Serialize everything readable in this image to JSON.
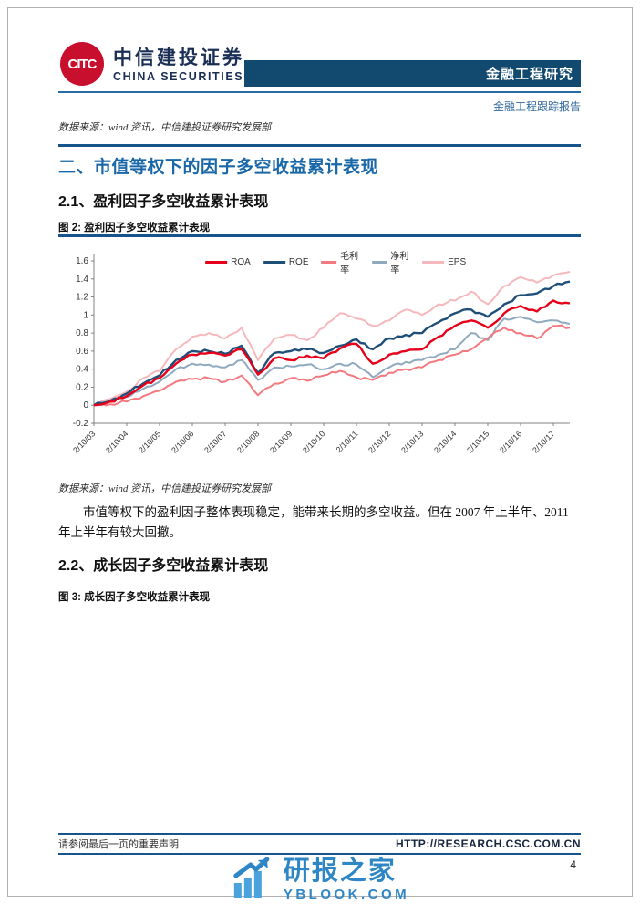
{
  "header": {
    "brand_cn": "中信建投证券",
    "brand_en": "CHINA SECURITIES",
    "banner": "金融工程研究",
    "report_type": "金融工程跟踪报告"
  },
  "top_source_note": "数据来源：wind 资讯，中信建投证券研究发展部",
  "section": {
    "title": "二、市值等权下的因子多空收益累计表现"
  },
  "subsection1": {
    "title": "2.1、盈利因子多空收益累计表现",
    "figure_caption": "图 2: 盈利因子多空收益累计表现",
    "source_note": "数据来源：wind 资讯，中信建投证券研究发展部",
    "paragraph": "市值等权下的盈利因子整体表现稳定，能带来长期的多空收益。但在 2007 年上半年、2011 年上半年有较大回撤。"
  },
  "subsection2": {
    "title": "2.2、成长因子多空收益累计表现",
    "figure_caption": "图 3: 成长因子多空收益累计表现"
  },
  "footer": {
    "disclaimer": "请参阅最后一页的重要声明",
    "url": "HTTP://RESEARCH.CSC.COM.CN",
    "page_number": "4"
  },
  "watermark": {
    "name": "研报之家",
    "site": "YBLOOK.COM"
  },
  "colors": {
    "banner_navy": "#12496f",
    "rule_blue": "#17548c",
    "section_blue": "#1a67a8",
    "logo_red": "#c8102e",
    "watermark_blue": "#2f86c4",
    "axis_gray": "#808080"
  },
  "chart_data": {
    "type": "line",
    "title": "盈利因子多空收益累计表现",
    "x_labels": [
      "2/10/03",
      "2/10/04",
      "2/10/05",
      "2/10/06",
      "2/10/07",
      "2/10/08",
      "2/10/09",
      "2/10/10",
      "2/10/11",
      "2/10/12",
      "2/10/13",
      "2/10/14",
      "2/10/15",
      "2/10/16",
      "2/10/17"
    ],
    "points_per_label": 2,
    "ylim": [
      -0.2,
      1.6
    ],
    "y_ticks": [
      -0.2,
      0,
      0.2,
      0.4,
      0.6,
      0.8,
      1,
      1.2,
      1.4,
      1.6
    ],
    "legend_position": "top",
    "grid": false,
    "series": [
      {
        "name": "ROA",
        "color": "#e60019",
        "values": [
          0.0,
          0.04,
          0.1,
          0.22,
          0.3,
          0.46,
          0.56,
          0.58,
          0.55,
          0.62,
          0.34,
          0.52,
          0.5,
          0.55,
          0.52,
          0.63,
          0.68,
          0.46,
          0.56,
          0.6,
          0.62,
          0.76,
          0.88,
          0.94,
          0.86,
          1.02,
          1.1,
          1.04,
          1.16,
          1.13
        ]
      },
      {
        "name": "ROE",
        "color": "#1f4e79",
        "values": [
          0.0,
          0.05,
          0.13,
          0.24,
          0.33,
          0.5,
          0.6,
          0.6,
          0.57,
          0.66,
          0.36,
          0.58,
          0.6,
          0.62,
          0.58,
          0.66,
          0.73,
          0.62,
          0.74,
          0.78,
          0.8,
          0.92,
          1.02,
          1.06,
          0.98,
          1.12,
          1.22,
          1.24,
          1.32,
          1.37
        ]
      },
      {
        "name": "毛利率",
        "color": "#f4797f",
        "values": [
          0.0,
          0.01,
          0.04,
          0.1,
          0.16,
          0.26,
          0.29,
          0.3,
          0.26,
          0.33,
          0.11,
          0.24,
          0.3,
          0.27,
          0.33,
          0.38,
          0.31,
          0.28,
          0.36,
          0.4,
          0.42,
          0.5,
          0.56,
          0.62,
          0.74,
          0.86,
          0.8,
          0.74,
          0.88,
          0.86
        ]
      },
      {
        "name": "净利率",
        "color": "#8faabf",
        "values": [
          0.0,
          0.04,
          0.09,
          0.18,
          0.26,
          0.4,
          0.46,
          0.45,
          0.42,
          0.5,
          0.28,
          0.42,
          0.43,
          0.45,
          0.4,
          0.46,
          0.45,
          0.31,
          0.42,
          0.48,
          0.5,
          0.56,
          0.62,
          0.8,
          0.72,
          0.96,
          0.98,
          0.92,
          0.94,
          0.9
        ]
      },
      {
        "name": "EPS",
        "color": "#f5b8bd",
        "values": [
          0.0,
          0.07,
          0.15,
          0.3,
          0.38,
          0.62,
          0.76,
          0.8,
          0.74,
          0.86,
          0.5,
          0.74,
          0.78,
          0.72,
          0.86,
          1.02,
          0.96,
          0.88,
          0.94,
          1.06,
          1.0,
          1.12,
          1.16,
          1.26,
          1.12,
          1.32,
          1.42,
          1.36,
          1.44,
          1.48
        ]
      }
    ]
  }
}
